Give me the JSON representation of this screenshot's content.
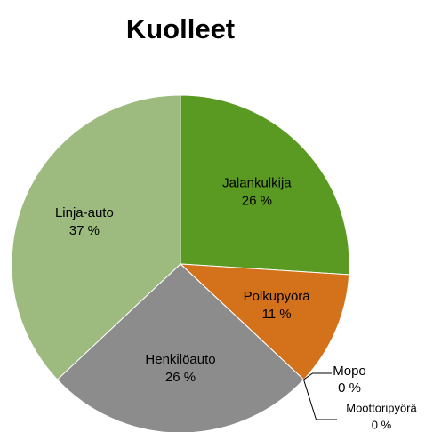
{
  "chart_data": {
    "type": "pie",
    "title": "Kuolleet",
    "categories": [
      "Jalankulkija",
      "Polkupyörä",
      "Mopo",
      "Moottoripyörä",
      "Henkilöauto",
      "Linja-auto"
    ],
    "values": [
      26,
      11,
      0,
      0,
      26,
      37
    ],
    "value_labels": [
      "26 %",
      "11 %",
      "0 %",
      "0 %",
      "26 %",
      "37 %"
    ],
    "colors": [
      "#5a9a22",
      "#d4711b",
      "#f0c020",
      "#7a9ad0",
      "#8c8c8c",
      "#9dbb7f"
    ]
  }
}
